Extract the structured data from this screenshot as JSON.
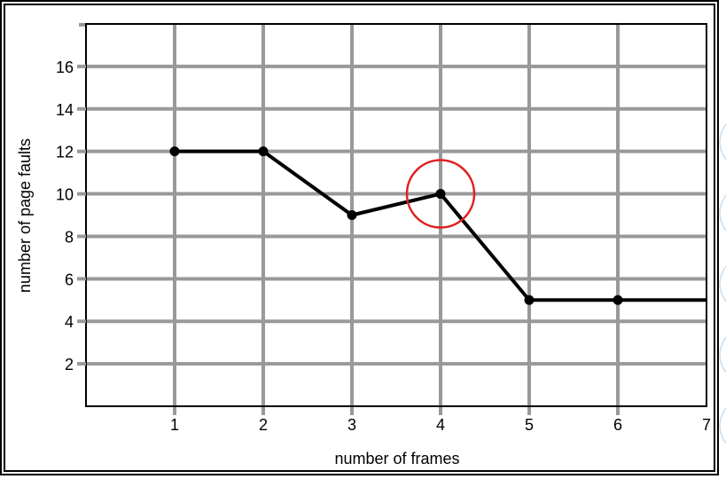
{
  "chart_data": {
    "type": "line",
    "title": "",
    "xlabel": "number of frames",
    "ylabel": "number of page faults",
    "x": [
      1,
      2,
      3,
      4,
      5,
      6,
      7
    ],
    "series": [
      {
        "values": [
          12,
          12,
          9,
          10,
          5,
          5,
          5
        ],
        "marker_x": [
          1,
          2,
          3,
          4,
          5,
          6
        ]
      }
    ],
    "xticks": [
      1,
      2,
      3,
      4,
      5,
      6,
      7
    ],
    "yticks": [
      2,
      4,
      6,
      8,
      10,
      12,
      14,
      16
    ],
    "xlim": [
      0,
      7
    ],
    "ylim": [
      0,
      18
    ],
    "grid": true,
    "highlight": {
      "x": 4,
      "y": 10,
      "shape": "circle",
      "color": "#e02020"
    },
    "line_color": "#000000",
    "grid_color": "#999999"
  }
}
